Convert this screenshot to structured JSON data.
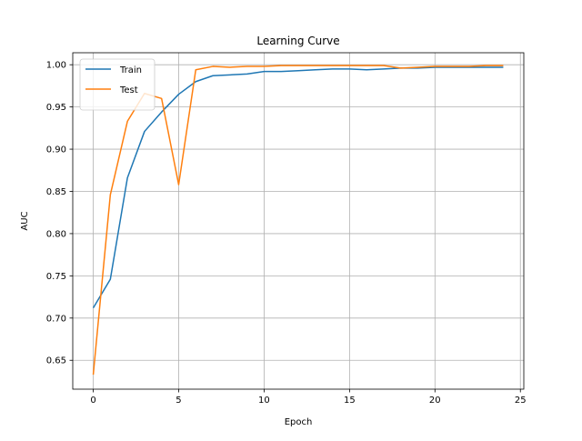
{
  "chart_data": {
    "type": "line",
    "title": "Learning Curve",
    "xlabel": "Epoch",
    "ylabel": "AUC",
    "xlim": [
      -1.2,
      25.2
    ],
    "ylim": [
      0.6158,
      1.0142
    ],
    "xticks": [
      0,
      5,
      10,
      15,
      20,
      25
    ],
    "xtick_labels": [
      "0",
      "5",
      "10",
      "15",
      "20",
      "25"
    ],
    "yticks": [
      0.65,
      0.7,
      0.75,
      0.8,
      0.85,
      0.9,
      0.95,
      1.0
    ],
    "ytick_labels": [
      "0.65",
      "0.70",
      "0.75",
      "0.80",
      "0.85",
      "0.90",
      "0.95",
      "1.00"
    ],
    "grid": true,
    "legend_position": "upper-left",
    "x": [
      0,
      1,
      2,
      3,
      4,
      5,
      6,
      7,
      8,
      9,
      10,
      11,
      12,
      13,
      14,
      15,
      16,
      17,
      18,
      19,
      20,
      21,
      22,
      23,
      24
    ],
    "series": [
      {
        "name": "Train",
        "color": "#1f77b4",
        "values": [
          0.712,
          0.746,
          0.866,
          0.921,
          0.944,
          0.965,
          0.98,
          0.987,
          0.988,
          0.989,
          0.992,
          0.992,
          0.993,
          0.994,
          0.995,
          0.995,
          0.994,
          0.995,
          0.996,
          0.996,
          0.997,
          0.997,
          0.997,
          0.997,
          0.997
        ]
      },
      {
        "name": "Test",
        "color": "#ff7f0e",
        "values": [
          0.633,
          0.846,
          0.933,
          0.966,
          0.96,
          0.858,
          0.994,
          0.998,
          0.997,
          0.998,
          0.998,
          0.999,
          0.999,
          0.999,
          0.999,
          0.999,
          0.999,
          0.999,
          0.996,
          0.997,
          0.998,
          0.998,
          0.998,
          0.999,
          0.999
        ]
      }
    ]
  }
}
